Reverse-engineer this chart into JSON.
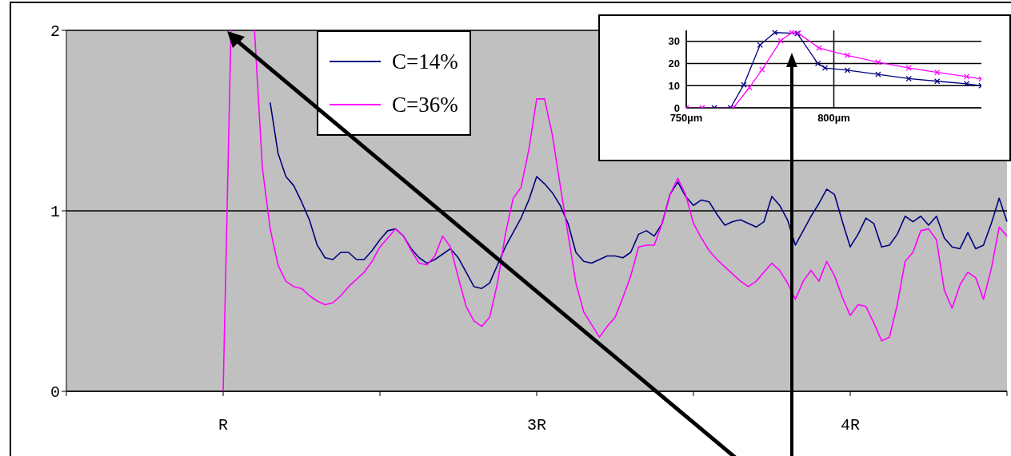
{
  "chart_data": [
    {
      "type": "line",
      "ylim": [
        0,
        2
      ],
      "yticks": [
        0,
        1,
        2
      ],
      "grid": "y",
      "legend": "top left",
      "marker": "none",
      "line_style": "solid",
      "categories": [
        null,
        null,
        null,
        null,
        null,
        null,
        null,
        null,
        null,
        null,
        null,
        null,
        null,
        null,
        null,
        null,
        null,
        null,
        null,
        null,
        "R",
        null,
        null,
        null,
        null,
        null,
        null,
        null,
        null,
        null,
        null,
        null,
        null,
        null,
        null,
        null,
        null,
        null,
        null,
        null,
        null,
        null,
        null,
        null,
        null,
        null,
        null,
        null,
        null,
        null,
        null,
        null,
        null,
        null,
        null,
        null,
        null,
        null,
        null,
        null,
        "3R",
        null,
        null,
        null,
        null,
        null,
        null,
        null,
        null,
        null,
        null,
        null,
        null,
        null,
        null,
        null,
        null,
        null,
        null,
        null,
        null,
        null,
        null,
        null,
        null,
        null,
        null,
        null,
        null,
        null,
        null,
        null,
        null,
        null,
        null,
        null,
        null,
        null,
        null,
        null,
        "4R",
        null,
        null,
        null,
        null,
        null,
        null,
        null,
        null,
        null,
        null,
        null,
        null,
        null,
        null,
        null,
        null,
        null,
        null,
        null,
        null
      ],
      "series": [
        {
          "name": "C=14%",
          "color": "#000080",
          "values": [
            null,
            null,
            null,
            null,
            null,
            null,
            null,
            null,
            null,
            null,
            null,
            null,
            null,
            null,
            null,
            null,
            null,
            null,
            null,
            null,
            null,
            null,
            null,
            null,
            null,
            null,
            1.6,
            1.32,
            1.19,
            1.14,
            1.05,
            0.95,
            0.81,
            0.74,
            0.73,
            0.77,
            0.77,
            0.73,
            0.73,
            0.78,
            0.84,
            0.89,
            0.9,
            0.86,
            0.79,
            0.74,
            0.71,
            0.73,
            0.76,
            0.79,
            0.74,
            0.66,
            0.58,
            0.57,
            0.6,
            0.7,
            0.8,
            0.88,
            0.96,
            1.06,
            1.19,
            1.15,
            1.1,
            1.03,
            0.93,
            0.77,
            0.72,
            0.71,
            0.73,
            0.75,
            0.75,
            0.74,
            0.77,
            0.87,
            0.89,
            0.86,
            0.93,
            1.09,
            1.16,
            1.08,
            1.03,
            1.06,
            1.05,
            0.98,
            0.92,
            0.94,
            0.95,
            0.93,
            0.91,
            0.94,
            1.08,
            1.03,
            0.95,
            0.81,
            0.89,
            0.97,
            1.04,
            1.12,
            1.09,
            0.94,
            0.8,
            0.87,
            0.96,
            0.93,
            0.8,
            0.81,
            0.87,
            0.97,
            0.94,
            0.97,
            0.92,
            0.97,
            0.85,
            0.8,
            0.79,
            0.88,
            0.79,
            0.81,
            0.93,
            1.07,
            0.94
          ]
        },
        {
          "name": "C=36%",
          "color": "#ff00ff",
          "values": [
            null,
            null,
            null,
            null,
            null,
            null,
            null,
            null,
            null,
            null,
            null,
            null,
            null,
            null,
            null,
            null,
            null,
            null,
            null,
            null,
            0,
            2.0,
            null,
            null,
            2.0,
            1.24,
            0.9,
            0.7,
            0.61,
            0.58,
            0.57,
            0.53,
            0.5,
            0.48,
            0.49,
            0.53,
            0.58,
            0.62,
            0.66,
            0.72,
            0.8,
            0.85,
            0.9,
            0.86,
            0.78,
            0.71,
            0.7,
            0.75,
            0.86,
            0.8,
            0.63,
            0.47,
            0.39,
            0.36,
            0.41,
            0.6,
            0.87,
            1.07,
            1.13,
            1.34,
            1.62,
            1.62,
            1.42,
            1.14,
            0.87,
            0.6,
            0.44,
            0.37,
            0.3,
            0.36,
            0.41,
            0.52,
            0.64,
            0.8,
            0.81,
            0.81,
            0.93,
            1.09,
            1.18,
            1.09,
            0.93,
            0.85,
            0.78,
            0.73,
            0.69,
            0.65,
            0.61,
            0.58,
            0.61,
            0.66,
            0.71,
            0.67,
            0.6,
            0.51,
            0.61,
            0.67,
            0.61,
            0.72,
            0.64,
            0.52,
            0.42,
            0.48,
            0.47,
            0.38,
            0.28,
            0.3,
            0.48,
            0.72,
            0.77,
            0.89,
            0.9,
            0.84,
            0.56,
            0.46,
            0.59,
            0.66,
            0.63,
            0.51,
            0.68,
            0.91,
            0.86
          ]
        }
      ]
    },
    {
      "type": "line",
      "xlim": [
        750,
        850
      ],
      "ylim": [
        0,
        35
      ],
      "xticks": [
        {
          "value": 750,
          "label": "750µm"
        },
        {
          "value": 800,
          "label": "800µm"
        }
      ],
      "yticks": [
        0,
        10,
        20,
        30
      ],
      "grid": true,
      "marker": "cross",
      "line_style": "solid",
      "series": [
        {
          "color": "#000080",
          "x": [
            759.5,
            765,
            769.5,
            775,
            780,
            787.6,
            794.6,
            797,
            804.6,
            815,
            825.4,
            835,
            845,
            850
          ],
          "values": [
            0,
            0,
            10.4,
            28.4,
            34,
            33.6,
            20,
            18,
            17,
            15.1,
            13.2,
            12,
            10.9,
            10
          ]
        },
        {
          "color": "#ff00ff",
          "x": [
            750,
            755.4,
            766,
            771.4,
            775.7,
            782,
            785.7,
            788,
            795,
            804.6,
            815,
            825.4,
            835,
            845,
            850
          ],
          "values": [
            0,
            0,
            0,
            9.2,
            17.3,
            30.3,
            34,
            33.7,
            27,
            23.7,
            20.6,
            18,
            16,
            14.1,
            13
          ]
        }
      ]
    }
  ]
}
